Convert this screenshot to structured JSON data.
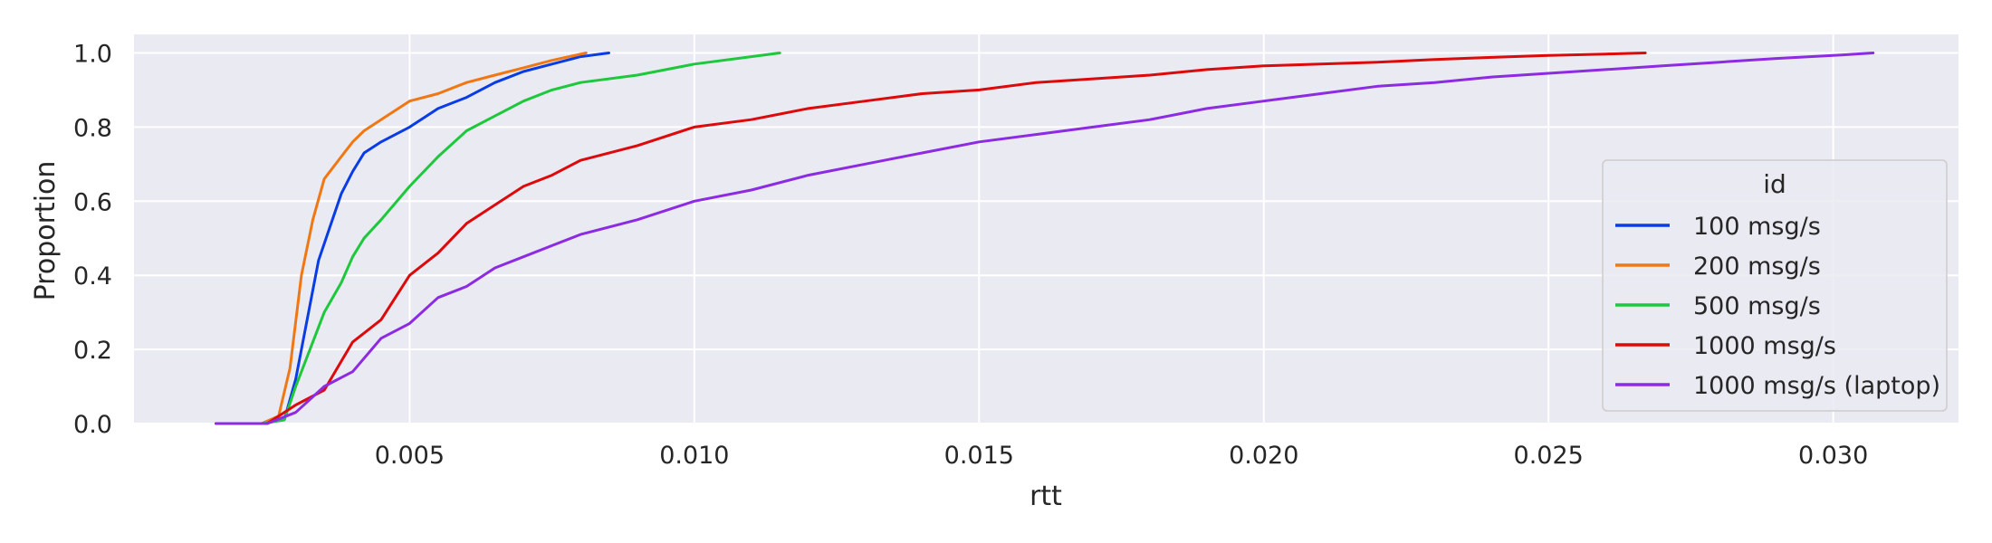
{
  "chart_data": {
    "type": "line",
    "xlabel": "rtt",
    "ylabel": "Proportion",
    "xlim": [
      0.00016,
      0.0322
    ],
    "ylim": [
      0,
      1.05
    ],
    "xticks": [
      0.005,
      0.01,
      0.015,
      0.02,
      0.025,
      0.03
    ],
    "xtick_labels": [
      "0.005",
      "0.010",
      "0.015",
      "0.020",
      "0.025",
      "0.030"
    ],
    "yticks": [
      0.0,
      0.2,
      0.4,
      0.6,
      0.8,
      1.0
    ],
    "ytick_labels": [
      "0.0",
      "0.2",
      "0.4",
      "0.6",
      "0.8",
      "1.0"
    ],
    "grid": true,
    "background": "#eaeaf2",
    "legend": {
      "title": "id",
      "placement": "right"
    },
    "series": [
      {
        "name": "100 msg/s",
        "color": "#0a3ce6",
        "x": [
          0.0016,
          0.0024,
          0.0028,
          0.003,
          0.0032,
          0.0034,
          0.0036,
          0.0038,
          0.004,
          0.0042,
          0.0045,
          0.005,
          0.0055,
          0.006,
          0.0065,
          0.007,
          0.0075,
          0.008,
          0.0085
        ],
        "y": [
          0.0,
          0.0,
          0.01,
          0.12,
          0.28,
          0.44,
          0.53,
          0.62,
          0.68,
          0.73,
          0.76,
          0.8,
          0.85,
          0.88,
          0.92,
          0.95,
          0.97,
          0.99,
          1.0
        ]
      },
      {
        "name": "200 msg/s",
        "color": "#f07814",
        "x": [
          0.0016,
          0.0024,
          0.0027,
          0.0029,
          0.0031,
          0.0033,
          0.0035,
          0.0038,
          0.004,
          0.0042,
          0.0045,
          0.005,
          0.0055,
          0.006,
          0.0065,
          0.007,
          0.0075,
          0.0081
        ],
        "y": [
          0.0,
          0.0,
          0.02,
          0.15,
          0.4,
          0.55,
          0.66,
          0.72,
          0.76,
          0.79,
          0.82,
          0.87,
          0.89,
          0.92,
          0.94,
          0.96,
          0.98,
          1.0
        ]
      },
      {
        "name": "500 msg/s",
        "color": "#1ec83c",
        "x": [
          0.0016,
          0.0024,
          0.0028,
          0.003,
          0.0033,
          0.0035,
          0.0038,
          0.004,
          0.0042,
          0.0045,
          0.005,
          0.0055,
          0.006,
          0.0065,
          0.007,
          0.0075,
          0.008,
          0.009,
          0.01,
          0.011,
          0.0115
        ],
        "y": [
          0.0,
          0.0,
          0.01,
          0.1,
          0.22,
          0.3,
          0.38,
          0.45,
          0.5,
          0.55,
          0.64,
          0.72,
          0.79,
          0.83,
          0.87,
          0.9,
          0.92,
          0.94,
          0.97,
          0.99,
          1.0
        ]
      },
      {
        "name": "1000 msg/s",
        "color": "#dc0a0a",
        "x": [
          0.0016,
          0.0025,
          0.003,
          0.0035,
          0.004,
          0.0045,
          0.005,
          0.0055,
          0.006,
          0.0065,
          0.007,
          0.0075,
          0.008,
          0.009,
          0.01,
          0.011,
          0.012,
          0.013,
          0.014,
          0.015,
          0.016,
          0.017,
          0.018,
          0.019,
          0.02,
          0.021,
          0.022,
          0.023,
          0.024,
          0.025,
          0.026,
          0.0267
        ],
        "y": [
          0.0,
          0.0,
          0.05,
          0.09,
          0.22,
          0.28,
          0.4,
          0.46,
          0.54,
          0.59,
          0.64,
          0.67,
          0.71,
          0.75,
          0.8,
          0.82,
          0.85,
          0.87,
          0.89,
          0.9,
          0.92,
          0.93,
          0.94,
          0.955,
          0.965,
          0.97,
          0.975,
          0.982,
          0.988,
          0.993,
          0.997,
          1.0
        ]
      },
      {
        "name": "1000 msg/s (laptop)",
        "color": "#8c2be2",
        "x": [
          0.0016,
          0.0025,
          0.003,
          0.0035,
          0.004,
          0.0045,
          0.005,
          0.0055,
          0.006,
          0.0065,
          0.007,
          0.0075,
          0.008,
          0.009,
          0.01,
          0.011,
          0.012,
          0.013,
          0.014,
          0.015,
          0.016,
          0.017,
          0.018,
          0.019,
          0.02,
          0.021,
          0.022,
          0.023,
          0.024,
          0.025,
          0.026,
          0.027,
          0.028,
          0.029,
          0.03,
          0.0307
        ],
        "y": [
          0.0,
          0.0,
          0.03,
          0.1,
          0.14,
          0.23,
          0.27,
          0.34,
          0.37,
          0.42,
          0.45,
          0.48,
          0.51,
          0.55,
          0.6,
          0.63,
          0.67,
          0.7,
          0.73,
          0.76,
          0.78,
          0.8,
          0.82,
          0.85,
          0.87,
          0.89,
          0.91,
          0.92,
          0.935,
          0.945,
          0.955,
          0.965,
          0.975,
          0.985,
          0.993,
          1.0
        ]
      }
    ]
  }
}
